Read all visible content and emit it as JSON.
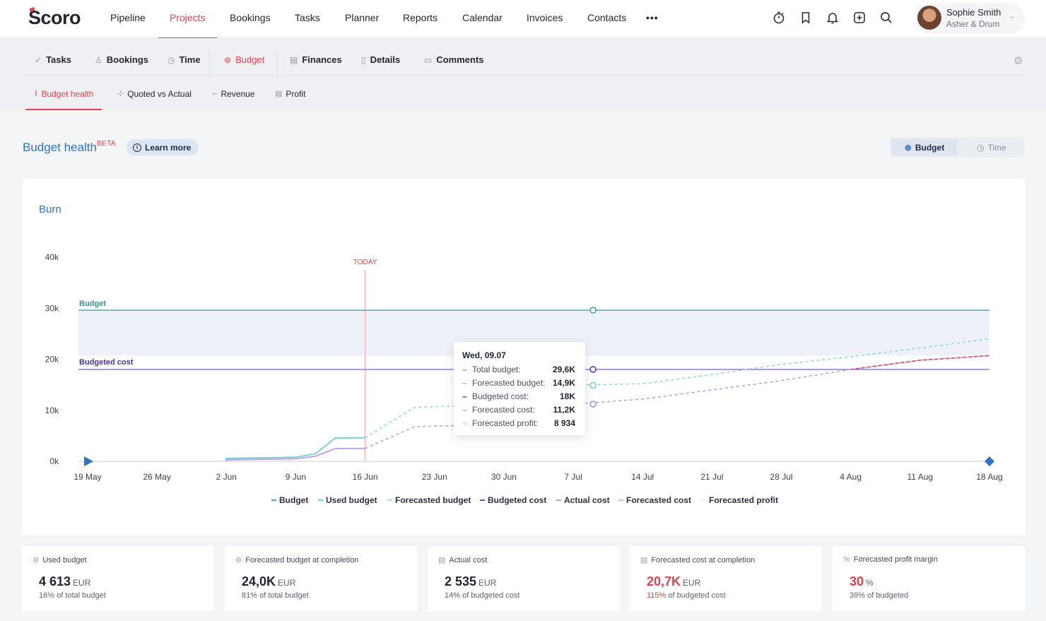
{
  "app": {
    "logo": "Scoro"
  },
  "topnav": {
    "items": [
      "Pipeline",
      "Projects",
      "Bookings",
      "Tasks",
      "Planner",
      "Reports",
      "Calendar",
      "Invoices",
      "Contacts"
    ],
    "active": "Projects",
    "more": "•••"
  },
  "user": {
    "name": "Sophie Smith",
    "company": "Asher & Drum"
  },
  "tabs": {
    "items": [
      "Tasks",
      "Bookings",
      "Time",
      "Budget",
      "Finances",
      "Details",
      "Comments"
    ],
    "active": "Budget"
  },
  "subtabs": {
    "items": [
      "Budget health",
      "Quoted vs Actual",
      "Revenue",
      "Profit"
    ],
    "active": "Budget health"
  },
  "page": {
    "title": "Budget health",
    "badge": "BETA",
    "learn_more": "Learn more",
    "toggle": {
      "active": "Budget",
      "other": "Time"
    }
  },
  "chart_card": {
    "title": "Burn"
  },
  "colors": {
    "accent_red": "#e0434d",
    "budget": "#4fa9ad",
    "used_budget": "#6fd0c4",
    "budgeted_cost": "#6a4fb6",
    "actual_cost": "#b89be8",
    "forecast_profit_fill": "#eef2f8",
    "title_blue": "#2f73c7"
  },
  "chart_data": {
    "type": "line",
    "title": "Burn",
    "ylim": [
      0,
      40000
    ],
    "y_ticks": [
      "0k",
      "10k",
      "20k",
      "30k",
      "40k"
    ],
    "x_ticks": [
      "19 May",
      "26 May",
      "2 Jun",
      "9 Jun",
      "16 Jun",
      "23 Jun",
      "30 Jun",
      "7 Jul",
      "14 Jul",
      "21 Jul",
      "28 Jul",
      "4 Aug",
      "11 Aug",
      "18 Aug"
    ],
    "today_label": "TODAY",
    "today_x": "16 Jun",
    "line_labels": {
      "budget": "Budget",
      "budgeted_cost": "Budgeted cost"
    },
    "budget_level": 29600,
    "budgeted_cost_level": 18000,
    "series": [
      {
        "name": "Used budget",
        "key": "used_budget",
        "dashed": false,
        "points": [
          [
            "2 Jun",
            0
          ],
          [
            "2 Jun",
            600
          ],
          [
            "9 Jun",
            800
          ],
          [
            "11 Jun",
            1500
          ],
          [
            "13 Jun",
            4600
          ],
          [
            "16 Jun",
            4613
          ]
        ]
      },
      {
        "name": "Forecasted budget",
        "key": "forecast_budget",
        "dashed": true,
        "points": [
          [
            "16 Jun",
            4613
          ],
          [
            "21 Jun",
            10600
          ],
          [
            "25 Jun",
            10800
          ],
          [
            "7 Jul",
            14900
          ],
          [
            "14 Jul",
            15200
          ],
          [
            "21 Jul",
            17000
          ],
          [
            "28 Jul",
            19000
          ],
          [
            "4 Aug",
            20500
          ],
          [
            "11 Aug",
            22200
          ],
          [
            "18 Aug",
            24000
          ]
        ]
      },
      {
        "name": "Actual cost",
        "key": "actual_cost",
        "dashed": false,
        "points": [
          [
            "2 Jun",
            0
          ],
          [
            "2 Jun",
            300
          ],
          [
            "9 Jun",
            500
          ],
          [
            "11 Jun",
            1000
          ],
          [
            "13 Jun",
            2500
          ],
          [
            "16 Jun",
            2535
          ]
        ]
      },
      {
        "name": "Forecasted cost",
        "key": "forecast_cost",
        "dashed": true,
        "points": [
          [
            "16 Jun",
            2535
          ],
          [
            "21 Jun",
            6800
          ],
          [
            "25 Jun",
            7000
          ],
          [
            "7 Jul",
            11200
          ],
          [
            "14 Jul",
            12200
          ],
          [
            "21 Jul",
            14000
          ],
          [
            "28 Jul",
            15800
          ],
          [
            "4 Aug",
            18000
          ],
          [
            "11 Aug",
            19800
          ],
          [
            "18 Aug",
            20700
          ]
        ]
      }
    ],
    "legend": [
      "Budget",
      "Used budget",
      "Forecasted budget",
      "Budgeted cost",
      "Actual cost",
      "Forecasted cost",
      "Forecasted profit"
    ],
    "tooltip": {
      "date": "Wed, 09.07",
      "rows": [
        {
          "label": "Total budget:",
          "value": "29,6K"
        },
        {
          "label": "Forecasted budget:",
          "value": "14,9K"
        },
        {
          "label": "Budgeted cost:",
          "value": "18K"
        },
        {
          "label": "Forecasted cost:",
          "value": "11,2K"
        },
        {
          "label": "Forecasted profit:",
          "value": "8 934"
        }
      ]
    }
  },
  "kpis": [
    {
      "label": "Used budget",
      "value": "4 613",
      "unit": "EUR",
      "sub_pct": "16%",
      "sub_text": "of total budget",
      "alert": false
    },
    {
      "label": "Forecasted budget at completion",
      "value": "24,0K",
      "unit": "EUR",
      "sub_pct": "81%",
      "sub_text": "of total budget",
      "alert": false
    },
    {
      "label": "Actual cost",
      "value": "2 535",
      "unit": "EUR",
      "sub_pct": "14%",
      "sub_text": "of budgeted cost",
      "alert": false
    },
    {
      "label": "Forecasted cost at completion",
      "value": "20,7K",
      "unit": "EUR",
      "sub_pct": "115%",
      "sub_text": "of budgeted cost",
      "alert": true
    },
    {
      "label": "Forecasted profit margin",
      "value": "30",
      "unit": "%",
      "sub_pct": "39%",
      "sub_text": "of budgeted",
      "alert": true
    }
  ]
}
